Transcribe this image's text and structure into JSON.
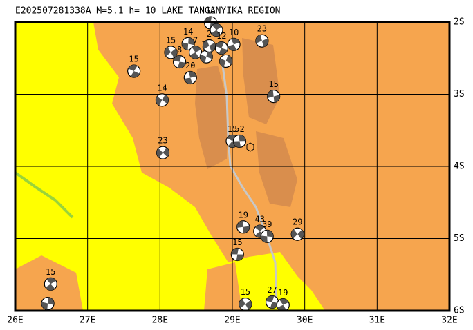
{
  "map": {
    "title": "E202507281338A  M=5.1  h= 10  LAKE TANGANYIKA REGION",
    "lon_range": [
      26,
      32
    ],
    "lat_range": [
      -6,
      -2
    ],
    "lon_ticks": [
      {
        "value": 26,
        "label": "26E"
      },
      {
        "value": 27,
        "label": "27E"
      },
      {
        "value": 28,
        "label": "28E"
      },
      {
        "value": 29,
        "label": "29E"
      },
      {
        "value": 30,
        "label": "30E"
      },
      {
        "value": 31,
        "label": "31E"
      },
      {
        "value": 32,
        "label": "32E"
      }
    ],
    "lat_ticks": [
      {
        "value": -2,
        "label": "2S"
      },
      {
        "value": -3,
        "label": "3S"
      },
      {
        "value": -4,
        "label": "4S"
      },
      {
        "value": -5,
        "label": "5S"
      },
      {
        "value": -6,
        "label": "6S"
      }
    ],
    "events": [
      {
        "label": "15",
        "lon": 28.7,
        "lat": -2.01
      },
      {
        "lon": 28.78,
        "lat": -2.11
      },
      {
        "label": "14",
        "lon": 28.39,
        "lat": -2.3
      },
      {
        "label": "15",
        "lon": 28.15,
        "lat": -2.42
      },
      {
        "label": "8",
        "lon": 28.27,
        "lat": -2.55
      },
      {
        "label": "7",
        "lon": 28.49,
        "lat": -2.42
      },
      {
        "label": "19",
        "lon": 28.64,
        "lat": -2.48
      },
      {
        "label": "2",
        "lon": 28.68,
        "lat": -2.33
      },
      {
        "label": "12",
        "lon": 28.85,
        "lat": -2.36
      },
      {
        "label": "10",
        "lon": 29.02,
        "lat": -2.31
      },
      {
        "lon": 28.91,
        "lat": -2.54
      },
      {
        "label": "23",
        "lon": 29.41,
        "lat": -2.26
      },
      {
        "label": "15",
        "lon": 27.64,
        "lat": -2.68
      },
      {
        "label": "20",
        "lon": 28.42,
        "lat": -2.77
      },
      {
        "label": "14",
        "lon": 28.03,
        "lat": -3.08
      },
      {
        "label": "15",
        "lon": 29.57,
        "lat": -3.03
      },
      {
        "label": "15",
        "lon": 29.0,
        "lat": -3.65
      },
      {
        "label": "52",
        "lon": 29.1,
        "lat": -3.65
      },
      {
        "label": "23",
        "lon": 28.04,
        "lat": -3.81
      },
      {
        "label": "19",
        "lon": 29.15,
        "lat": -4.84
      },
      {
        "label": "43",
        "lon": 29.38,
        "lat": -4.9
      },
      {
        "label": "39",
        "lon": 29.48,
        "lat": -4.97
      },
      {
        "label": "29",
        "lon": 29.9,
        "lat": -4.94
      },
      {
        "label": "15",
        "lon": 29.07,
        "lat": -5.22
      },
      {
        "label": "15",
        "lon": 26.49,
        "lat": -5.63
      },
      {
        "lon": 26.45,
        "lat": -5.9
      },
      {
        "label": "15",
        "lon": 29.18,
        "lat": -5.91
      },
      {
        "label": "27",
        "lon": 29.55,
        "lat": -5.88
      },
      {
        "label": "19",
        "lon": 29.7,
        "lat": -5.92
      }
    ]
  }
}
